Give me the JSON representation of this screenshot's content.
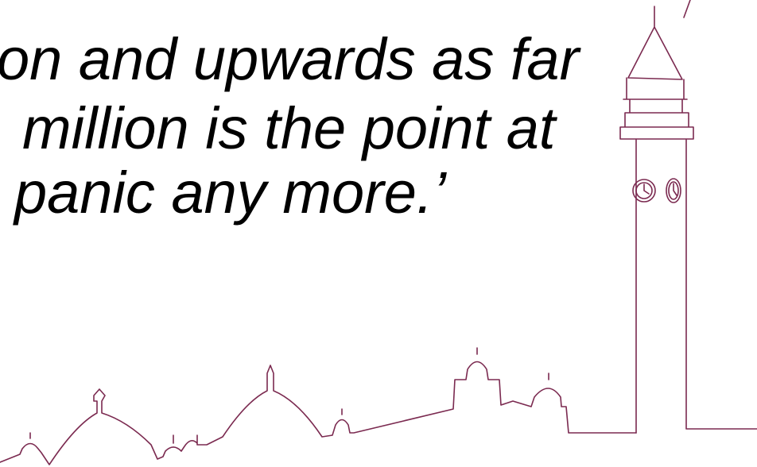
{
  "quote": {
    "lines": [
      "on and upwards as far",
      "million is the point at",
      "panic any more.’"
    ]
  }
}
